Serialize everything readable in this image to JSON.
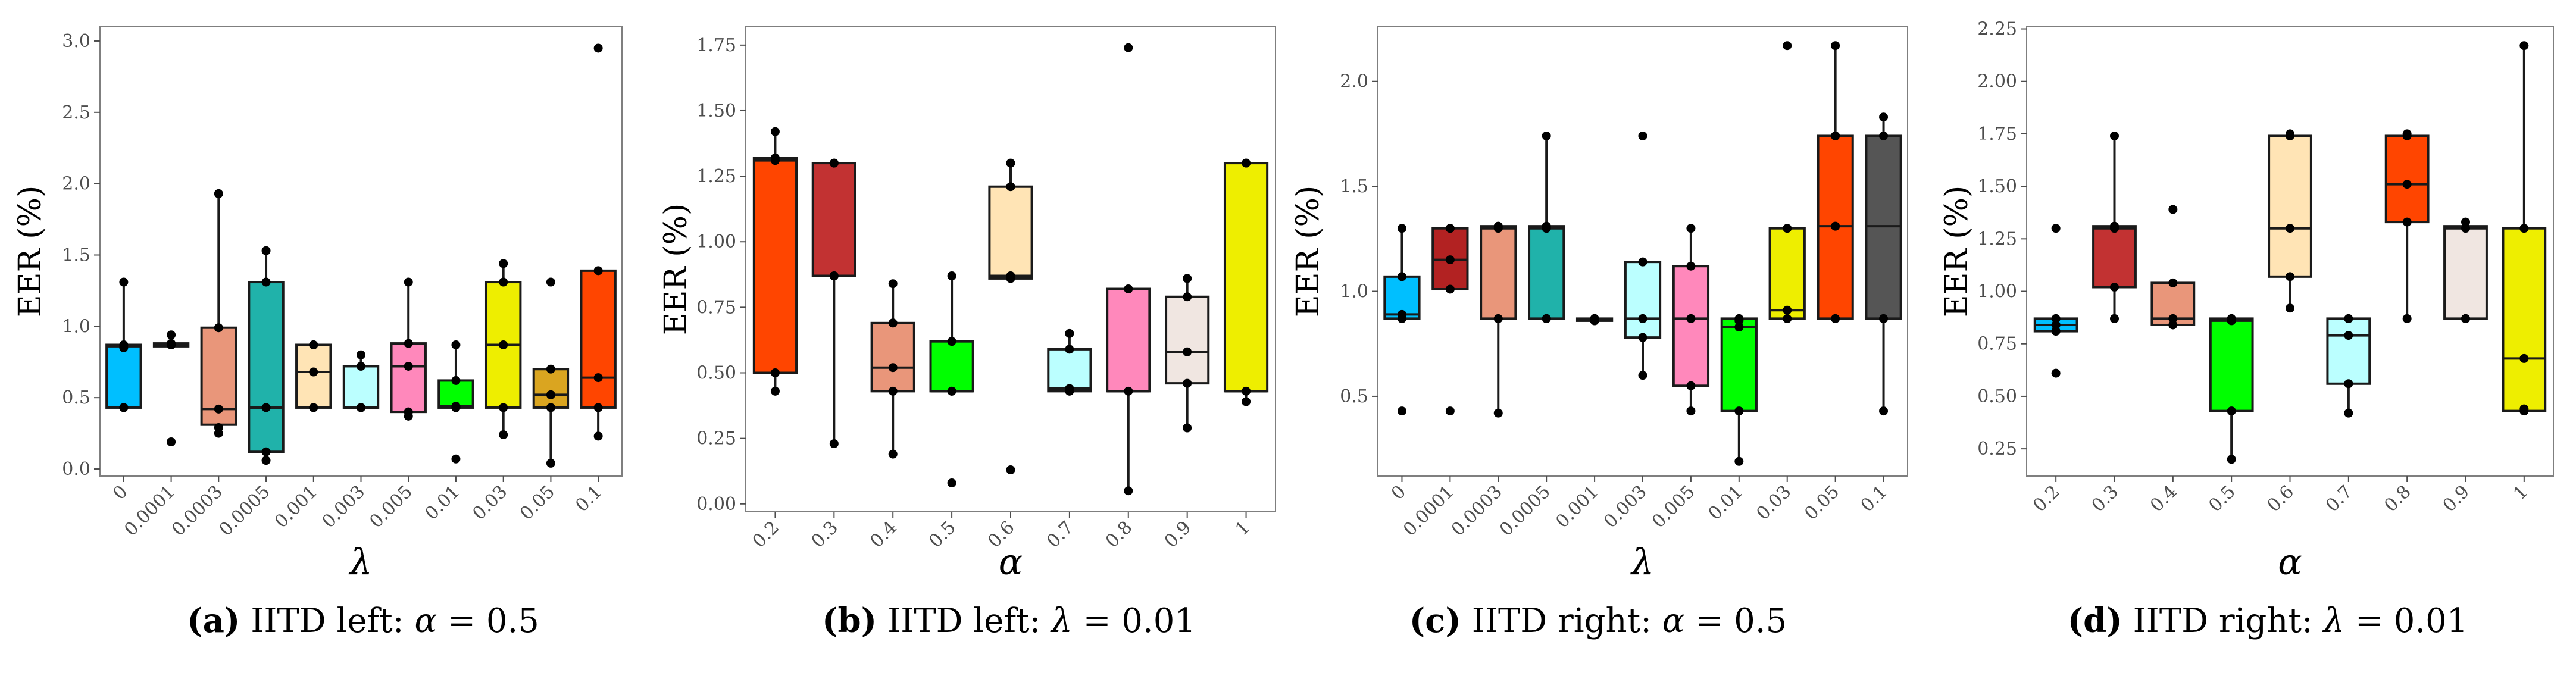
{
  "chart_data": [
    {
      "type": "box",
      "ylabel": "EER (%)",
      "xlabel": "λ",
      "ylim": [
        -0.05,
        3.1
      ],
      "yticks": [
        "0.0",
        "0.5",
        "1.0",
        "1.5",
        "2.0",
        "2.5",
        "3.0"
      ],
      "yticks_values": [
        0,
        0.5,
        1.0,
        1.5,
        2.0,
        2.5,
        3.0
      ],
      "categories": [
        "0",
        "0.0001",
        "0.0003",
        "0.0005",
        "0.001",
        "0.003",
        "0.005",
        "0.01",
        "0.03",
        "0.05",
        "0.1"
      ],
      "boxes": [
        {
          "color": "#00bfff",
          "q1": 0.43,
          "median": 0.86,
          "q3": 0.87,
          "low": 0.43,
          "high": 1.31,
          "points": [
            0.43,
            0.43,
            0.85,
            0.87,
            1.31
          ]
        },
        {
          "color": "#b22222",
          "q1": 0.86,
          "median": 0.87,
          "q3": 0.88,
          "low": 0.86,
          "high": 0.94,
          "points": [
            0.87,
            0.88,
            0.94,
            0.19,
            0.87
          ]
        },
        {
          "color": "#e9967a",
          "q1": 0.31,
          "median": 0.42,
          "q3": 0.99,
          "low": 0.25,
          "high": 1.93,
          "points": [
            0.25,
            0.29,
            0.42,
            0.99,
            1.93
          ]
        },
        {
          "color": "#20b2aa",
          "q1": 0.12,
          "median": 0.43,
          "q3": 1.31,
          "low": 0.06,
          "high": 1.53,
          "points": [
            0.06,
            0.12,
            0.43,
            1.31,
            1.53
          ]
        },
        {
          "color": "#ffe4b5",
          "q1": 0.43,
          "median": 0.68,
          "q3": 0.87,
          "low": 0.43,
          "high": 0.87,
          "points": [
            0.43,
            0.43,
            0.68,
            0.87,
            0.87
          ]
        },
        {
          "color": "#bbffff",
          "q1": 0.43,
          "median": 0.43,
          "q3": 0.72,
          "low": 0.43,
          "high": 0.8,
          "points": [
            0.43,
            0.43,
            0.43,
            0.72,
            0.8
          ]
        },
        {
          "color": "#ff88bb",
          "q1": 0.4,
          "median": 0.72,
          "q3": 0.88,
          "low": 0.37,
          "high": 1.31,
          "points": [
            0.37,
            0.4,
            0.72,
            0.88,
            1.31
          ]
        },
        {
          "color": "#00ff00",
          "q1": 0.43,
          "median": 0.44,
          "q3": 0.62,
          "low": 0.43,
          "high": 0.87,
          "points": [
            0.43,
            0.43,
            0.44,
            0.62,
            0.87,
            0.07
          ]
        },
        {
          "color": "#eeee00",
          "q1": 0.43,
          "median": 0.87,
          "q3": 1.31,
          "low": 0.24,
          "high": 1.44,
          "points": [
            0.24,
            0.43,
            0.87,
            1.31,
            1.44
          ]
        },
        {
          "color": "#daa520",
          "q1": 0.43,
          "median": 0.52,
          "q3": 0.7,
          "low": 0.04,
          "high": 0.7,
          "points": [
            0.04,
            0.43,
            0.52,
            0.7,
            1.31
          ]
        },
        {
          "color": "#ff4500",
          "q1": 0.43,
          "median": 0.64,
          "q3": 1.39,
          "low": 0.23,
          "high": 1.39,
          "points": [
            0.23,
            0.43,
            0.64,
            1.39,
            2.95
          ]
        }
      ],
      "caption_label": "(a)",
      "caption_text": "IITD left:",
      "caption_var": "α",
      "caption_value": "= 0.5"
    },
    {
      "type": "box",
      "ylabel": "EER (%)",
      "xlabel": "α",
      "ylim": [
        -0.03,
        1.82
      ],
      "yticks": [
        "0.00",
        "0.25",
        "0.50",
        "0.75",
        "1.00",
        "1.25",
        "1.50",
        "1.75"
      ],
      "yticks_values": [
        0,
        0.25,
        0.5,
        0.75,
        1.0,
        1.25,
        1.5,
        1.75
      ],
      "categories": [
        "0.2",
        "0.3",
        "0.4",
        "0.5",
        "0.6",
        "0.7",
        "0.8",
        "0.9",
        "1"
      ],
      "boxes": [
        {
          "color": "#ff4500",
          "q1": 0.5,
          "median": 1.31,
          "q3": 1.32,
          "low": 0.43,
          "high": 1.42,
          "points": [
            0.43,
            0.5,
            1.31,
            1.32,
            1.42
          ]
        },
        {
          "color": "#c23232",
          "q1": 0.87,
          "median": 0.87,
          "q3": 1.3,
          "low": 0.23,
          "high": 1.3,
          "points": [
            0.23,
            0.87,
            0.87,
            1.3,
            1.3
          ]
        },
        {
          "color": "#e9967a",
          "q1": 0.43,
          "median": 0.52,
          "q3": 0.69,
          "low": 0.19,
          "high": 0.84,
          "points": [
            0.19,
            0.43,
            0.52,
            0.69,
            0.84
          ]
        },
        {
          "color": "#00ff00",
          "q1": 0.43,
          "median": 0.43,
          "q3": 0.62,
          "low": 0.43,
          "high": 0.87,
          "points": [
            0.43,
            0.43,
            0.62,
            0.87,
            0.08
          ]
        },
        {
          "color": "#ffe4b5",
          "q1": 0.86,
          "median": 0.87,
          "q3": 1.21,
          "low": 0.86,
          "high": 1.3,
          "points": [
            0.86,
            0.87,
            1.21,
            1.3,
            0.13
          ]
        },
        {
          "color": "#bbffff",
          "q1": 0.43,
          "median": 0.44,
          "q3": 0.59,
          "low": 0.43,
          "high": 0.65,
          "points": [
            0.43,
            0.44,
            0.59,
            0.65
          ]
        },
        {
          "color": "#ff88bb",
          "q1": 0.43,
          "median": 0.43,
          "q3": 0.82,
          "low": 0.05,
          "high": 0.82,
          "points": [
            0.05,
            0.43,
            0.82,
            1.74
          ]
        },
        {
          "color": "#f0e6e1",
          "q1": 0.46,
          "median": 0.58,
          "q3": 0.79,
          "low": 0.29,
          "high": 0.86,
          "points": [
            0.29,
            0.46,
            0.58,
            0.79,
            0.86
          ]
        },
        {
          "color": "#eeee00",
          "q1": 0.43,
          "median": 0.43,
          "q3": 1.3,
          "low": 0.39,
          "high": 1.3,
          "points": [
            0.39,
            0.43,
            1.3,
            1.3
          ]
        }
      ],
      "caption_label": "(b)",
      "caption_text": "IITD left:",
      "caption_var": "λ",
      "caption_value": "= 0.01"
    },
    {
      "type": "box",
      "ylabel": "EER (%)",
      "xlabel": "λ",
      "ylim": [
        0.12,
        2.26
      ],
      "yticks": [
        "0.5",
        "1.0",
        "1.5",
        "2.0"
      ],
      "yticks_values": [
        0.5,
        1.0,
        1.5,
        2.0
      ],
      "categories": [
        "0",
        "0.0001",
        "0.0003",
        "0.0005",
        "0.001",
        "0.003",
        "0.005",
        "0.01",
        "0.03",
        "0.05",
        "0.1"
      ],
      "boxes": [
        {
          "color": "#00bfff",
          "q1": 0.87,
          "median": 0.89,
          "q3": 1.07,
          "low": 0.87,
          "high": 1.3,
          "points": [
            0.87,
            0.89,
            1.07,
            1.3,
            0.43
          ]
        },
        {
          "color": "#b22222",
          "q1": 1.01,
          "median": 1.15,
          "q3": 1.3,
          "low": 1.01,
          "high": 1.3,
          "points": [
            1.01,
            1.15,
            1.3,
            1.3,
            0.43
          ]
        },
        {
          "color": "#e9967a",
          "q1": 0.87,
          "median": 1.3,
          "q3": 1.31,
          "low": 0.42,
          "high": 1.31,
          "points": [
            0.42,
            0.87,
            1.3,
            1.31
          ]
        },
        {
          "color": "#20b2aa",
          "q1": 0.87,
          "median": 1.3,
          "q3": 1.31,
          "low": 0.87,
          "high": 1.74,
          "points": [
            0.87,
            0.87,
            1.3,
            1.31,
            1.74
          ]
        },
        {
          "color": "#ffe4b5",
          "q1": 0.86,
          "median": 0.865,
          "q3": 0.87,
          "low": 0.86,
          "high": 0.87,
          "points": [
            0.86,
            0.86,
            0.87,
            0.87,
            0.87
          ]
        },
        {
          "color": "#bbffff",
          "q1": 0.78,
          "median": 0.87,
          "q3": 1.14,
          "low": 0.6,
          "high": 1.14,
          "points": [
            0.6,
            0.78,
            0.87,
            1.14,
            1.74
          ]
        },
        {
          "color": "#ff88bb",
          "q1": 0.55,
          "median": 0.87,
          "q3": 1.12,
          "low": 0.43,
          "high": 1.3,
          "points": [
            0.43,
            0.55,
            0.87,
            1.12,
            1.3
          ]
        },
        {
          "color": "#00ff00",
          "q1": 0.43,
          "median": 0.83,
          "q3": 0.87,
          "low": 0.19,
          "high": 0.87,
          "points": [
            0.19,
            0.43,
            0.83,
            0.86,
            0.87
          ]
        },
        {
          "color": "#eeee00",
          "q1": 0.87,
          "median": 0.91,
          "q3": 1.3,
          "low": 0.87,
          "high": 1.3,
          "points": [
            0.87,
            0.91,
            1.3,
            2.17
          ]
        },
        {
          "color": "#ff4500",
          "q1": 0.87,
          "median": 1.31,
          "q3": 1.74,
          "low": 0.87,
          "high": 2.17,
          "points": [
            0.87,
            1.31,
            1.74,
            1.74,
            2.17
          ]
        },
        {
          "color": "#555555",
          "q1": 0.87,
          "median": 1.31,
          "q3": 1.74,
          "low": 0.43,
          "high": 1.83,
          "points": [
            0.43,
            0.87,
            1.74,
            1.83
          ]
        }
      ],
      "caption_label": "(c)",
      "caption_text": "IITD right:",
      "caption_var": "α",
      "caption_value": "= 0.5"
    },
    {
      "type": "box",
      "ylabel": "EER (%)",
      "xlabel": "α",
      "ylim": [
        0.12,
        2.26
      ],
      "yticks": [
        "0.25",
        "0.50",
        "0.75",
        "1.00",
        "1.25",
        "1.50",
        "1.75",
        "2.00",
        "2.25"
      ],
      "yticks_values": [
        0.25,
        0.5,
        0.75,
        1.0,
        1.25,
        1.5,
        1.75,
        2.0,
        2.25
      ],
      "categories": [
        "0.2",
        "0.3",
        "0.4",
        "0.5",
        "0.6",
        "0.7",
        "0.8",
        "0.9",
        "1"
      ],
      "boxes": [
        {
          "color": "#00bfff",
          "q1": 0.81,
          "median": 0.84,
          "q3": 0.87,
          "low": 0.81,
          "high": 0.87,
          "points": [
            0.81,
            0.84,
            0.87,
            1.3,
            0.61
          ]
        },
        {
          "color": "#c23232",
          "q1": 1.02,
          "median": 1.3,
          "q3": 1.31,
          "low": 0.87,
          "high": 1.74,
          "points": [
            0.87,
            1.02,
            1.3,
            1.31,
            1.74
          ]
        },
        {
          "color": "#e9967a",
          "q1": 0.84,
          "median": 0.87,
          "q3": 1.04,
          "low": 0.84,
          "high": 1.04,
          "points": [
            0.84,
            0.87,
            1.04,
            1.39
          ]
        },
        {
          "color": "#00ff00",
          "q1": 0.43,
          "median": 0.86,
          "q3": 0.87,
          "low": 0.2,
          "high": 0.87,
          "points": [
            0.2,
            0.43,
            0.86,
            0.87
          ]
        },
        {
          "color": "#ffe4b5",
          "q1": 1.07,
          "median": 1.3,
          "q3": 1.74,
          "low": 0.92,
          "high": 1.75,
          "points": [
            0.92,
            1.07,
            1.3,
            1.74,
            1.75
          ]
        },
        {
          "color": "#bbffff",
          "q1": 0.56,
          "median": 0.79,
          "q3": 0.87,
          "low": 0.42,
          "high": 0.87,
          "points": [
            0.42,
            0.56,
            0.79,
            0.87
          ]
        },
        {
          "color": "#ff4500",
          "q1": 1.33,
          "median": 1.51,
          "q3": 1.74,
          "low": 0.87,
          "high": 1.75,
          "points": [
            0.87,
            1.33,
            1.51,
            1.74,
            1.75
          ]
        },
        {
          "color": "#f0e6e1",
          "q1": 0.87,
          "median": 1.3,
          "q3": 1.31,
          "low": 0.87,
          "high": 1.33,
          "points": [
            0.87,
            0.87,
            1.3,
            1.33
          ]
        },
        {
          "color": "#eeee00",
          "q1": 0.43,
          "median": 0.68,
          "q3": 1.3,
          "low": 0.43,
          "high": 2.17,
          "points": [
            0.43,
            0.44,
            0.68,
            1.3,
            2.17
          ]
        }
      ],
      "caption_label": "(d)",
      "caption_text": "IITD right:",
      "caption_var": "λ",
      "caption_value": "= 0.01"
    }
  ]
}
